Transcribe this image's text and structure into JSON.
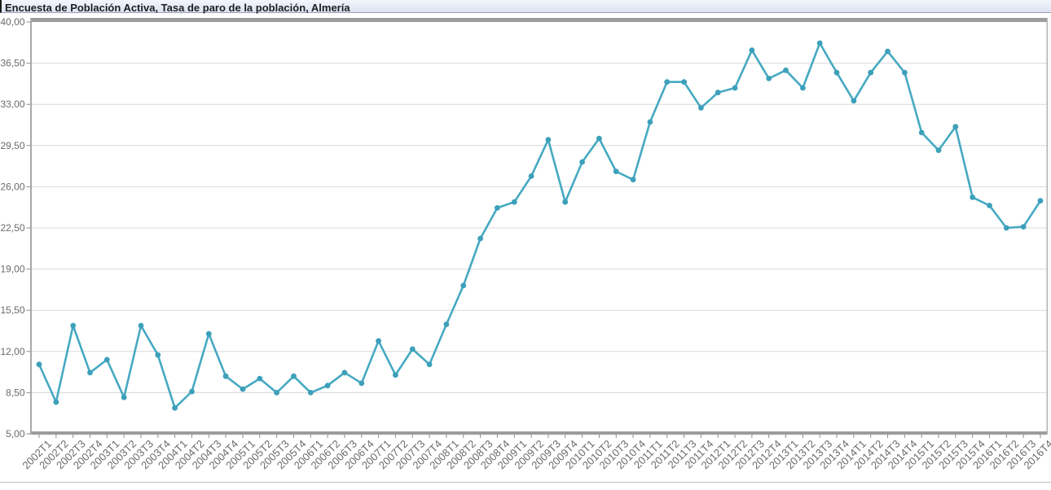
{
  "title": "Encuesta de Población Activa, Tasa de paro de la población, Almería",
  "chart_data": {
    "type": "line",
    "title": "Encuesta de Población Activa, Tasa de paro de la población, Almería",
    "xlabel": "",
    "ylabel": "",
    "legend": "none",
    "grid": true,
    "ylim": [
      5,
      40
    ],
    "yticks": [
      5,
      8.5,
      12,
      15.5,
      19,
      22.5,
      26,
      29.5,
      33,
      36.5,
      40
    ],
    "ytick_labels": [
      "5,00",
      "8,50",
      "12,00",
      "15,50",
      "19,00",
      "22,50",
      "26,00",
      "29,50",
      "33,00",
      "36,50",
      "40,00"
    ],
    "categories": [
      "2002T1",
      "2002T2",
      "2002T3",
      "2002T4",
      "2003T1",
      "2003T2",
      "2003T3",
      "2003T4",
      "2004T1",
      "2004T2",
      "2004T3",
      "2004T4",
      "2005T1",
      "2005T2",
      "2005T3",
      "2005T4",
      "2006T1",
      "2006T2",
      "2006T3",
      "2006T4",
      "2007T1",
      "2007T2",
      "2007T3",
      "2007T4",
      "2008T1",
      "2008T2",
      "2008T3",
      "2008T4",
      "2009T1",
      "2009T2",
      "2009T3",
      "2009T4",
      "2010T1",
      "2010T2",
      "2010T3",
      "2010T4",
      "2011T1",
      "2011T2",
      "2011T3",
      "2011T4",
      "2012T1",
      "2012T2",
      "2012T3",
      "2012T4",
      "2013T1",
      "2013T2",
      "2013T3",
      "2013T4",
      "2014T1",
      "2014T2",
      "2014T3",
      "2014T4",
      "2015T1",
      "2015T2",
      "2015T3",
      "2015T4",
      "2016T1",
      "2016T2",
      "2016T3",
      "2016T4"
    ],
    "series": [
      {
        "name": "Tasa de paro de la población, Almería",
        "values": [
          10.9,
          7.7,
          14.2,
          10.2,
          11.3,
          8.1,
          14.2,
          11.7,
          7.2,
          8.6,
          13.5,
          9.9,
          8.8,
          9.7,
          8.5,
          9.9,
          8.5,
          9.1,
          10.2,
          9.3,
          12.9,
          10.0,
          12.2,
          10.9,
          14.3,
          17.6,
          21.6,
          24.2,
          24.7,
          26.9,
          30.0,
          24.7,
          28.1,
          30.1,
          27.3,
          26.6,
          31.5,
          34.9,
          34.9,
          32.7,
          34.0,
          34.4,
          37.6,
          35.2,
          35.9,
          34.4,
          38.2,
          35.7,
          33.3,
          35.7,
          37.5,
          35.7,
          30.6,
          29.1,
          31.1,
          25.1,
          24.4,
          22.5,
          22.6,
          24.8
        ]
      }
    ],
    "line_color": "#46a9c2",
    "marker_color": "#3da0ba"
  }
}
